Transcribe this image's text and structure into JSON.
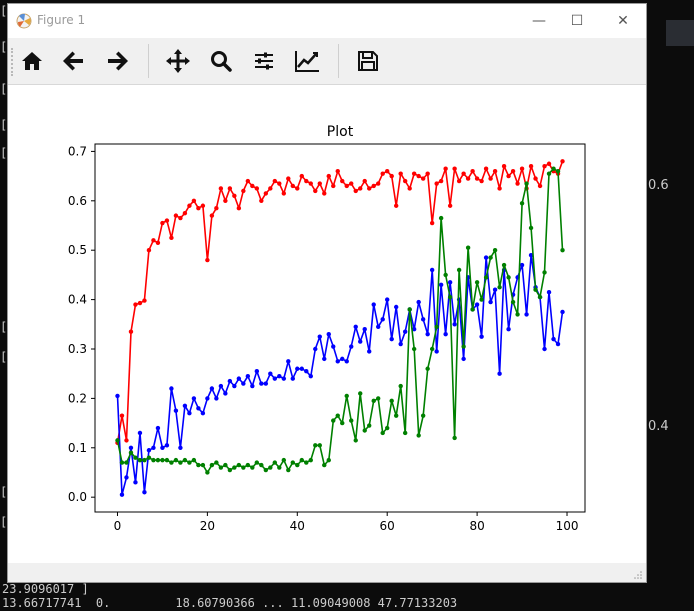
{
  "window": {
    "title": "Figure 1",
    "minimize_glyph": "—",
    "maximize_glyph": "☐",
    "close_glyph": "✕"
  },
  "toolbar": {
    "buttons": [
      {
        "name": "home-icon"
      },
      {
        "name": "back-arrow-icon"
      },
      {
        "name": "forward-arrow-icon"
      },
      {
        "name": "pan-icon"
      },
      {
        "name": "zoom-icon"
      },
      {
        "name": "configure-subplots-icon"
      },
      {
        "name": "edit-axis-icon"
      },
      {
        "name": "save-icon"
      }
    ]
  },
  "terminal": {
    "bottom_line_1": "23.9096017 ]",
    "bottom_line_2": "13.66717741  0.         18.60790366 ... 11.09049008 47.77133203",
    "right_tick_1": "0.6",
    "right_tick_2": "0.4"
  },
  "chart_data": {
    "type": "line",
    "title": "Plot",
    "xlabel": "",
    "ylabel": "",
    "xlim": [
      -5,
      104
    ],
    "ylim": [
      -0.03,
      0.715
    ],
    "xticks": [
      0,
      20,
      40,
      60,
      80,
      100
    ],
    "yticks": [
      0.0,
      0.1,
      0.2,
      0.3,
      0.4,
      0.5,
      0.6,
      0.7
    ],
    "xtick_labels": [
      "0",
      "20",
      "40",
      "60",
      "80",
      "100"
    ],
    "ytick_labels": [
      "0.0",
      "0.1",
      "0.2",
      "0.3",
      "0.4",
      "0.5",
      "0.6",
      "0.7"
    ],
    "grid": false,
    "marker": "dot",
    "x": [
      0,
      1,
      2,
      3,
      4,
      5,
      6,
      7,
      8,
      9,
      10,
      11,
      12,
      13,
      14,
      15,
      16,
      17,
      18,
      19,
      20,
      21,
      22,
      23,
      24,
      25,
      26,
      27,
      28,
      29,
      30,
      31,
      32,
      33,
      34,
      35,
      36,
      37,
      38,
      39,
      40,
      41,
      42,
      43,
      44,
      45,
      46,
      47,
      48,
      49,
      50,
      51,
      52,
      53,
      54,
      55,
      56,
      57,
      58,
      59,
      60,
      61,
      62,
      63,
      64,
      65,
      66,
      67,
      68,
      69,
      70,
      71,
      72,
      73,
      74,
      75,
      76,
      77,
      78,
      79,
      80,
      81,
      82,
      83,
      84,
      85,
      86,
      87,
      88,
      89,
      90,
      91,
      92,
      93,
      94,
      95,
      96,
      97,
      98,
      99
    ],
    "series": [
      {
        "color": "#ff0000",
        "values": [
          0.11,
          0.165,
          0.115,
          0.335,
          0.39,
          0.393,
          0.398,
          0.5,
          0.52,
          0.515,
          0.555,
          0.56,
          0.525,
          0.57,
          0.565,
          0.575,
          0.59,
          0.6,
          0.585,
          0.59,
          0.48,
          0.57,
          0.585,
          0.625,
          0.6,
          0.625,
          0.61,
          0.585,
          0.62,
          0.64,
          0.63,
          0.625,
          0.6,
          0.615,
          0.625,
          0.64,
          0.635,
          0.615,
          0.645,
          0.63,
          0.625,
          0.65,
          0.64,
          0.635,
          0.62,
          0.635,
          0.615,
          0.65,
          0.63,
          0.66,
          0.64,
          0.63,
          0.635,
          0.62,
          0.625,
          0.64,
          0.625,
          0.63,
          0.635,
          0.655,
          0.66,
          0.65,
          0.59,
          0.655,
          0.64,
          0.625,
          0.655,
          0.65,
          0.645,
          0.655,
          0.555,
          0.635,
          0.64,
          0.665,
          0.59,
          0.665,
          0.64,
          0.655,
          0.645,
          0.66,
          0.645,
          0.64,
          0.665,
          0.645,
          0.66,
          0.625,
          0.67,
          0.65,
          0.66,
          0.635,
          0.665,
          0.625,
          0.67,
          0.645,
          0.63,
          0.67,
          0.675,
          0.66,
          0.655,
          0.68
        ]
      },
      {
        "color": "#0000ff",
        "values": [
          0.205,
          0.005,
          0.04,
          0.1,
          0.03,
          0.13,
          0.01,
          0.095,
          0.1,
          0.14,
          0.1,
          0.105,
          0.22,
          0.175,
          0.1,
          0.185,
          0.17,
          0.2,
          0.18,
          0.17,
          0.2,
          0.22,
          0.2,
          0.225,
          0.21,
          0.235,
          0.225,
          0.24,
          0.23,
          0.245,
          0.225,
          0.255,
          0.23,
          0.23,
          0.25,
          0.24,
          0.245,
          0.24,
          0.275,
          0.24,
          0.26,
          0.26,
          0.255,
          0.245,
          0.3,
          0.325,
          0.28,
          0.33,
          0.305,
          0.275,
          0.28,
          0.275,
          0.305,
          0.345,
          0.315,
          0.34,
          0.295,
          0.39,
          0.345,
          0.36,
          0.4,
          0.32,
          0.385,
          0.31,
          0.335,
          0.38,
          0.34,
          0.395,
          0.36,
          0.33,
          0.46,
          0.295,
          0.43,
          0.33,
          0.435,
          0.35,
          0.4,
          0.28,
          0.445,
          0.38,
          0.39,
          0.325,
          0.485,
          0.395,
          0.42,
          0.25,
          0.46,
          0.34,
          0.41,
          0.445,
          0.47,
          0.37,
          0.49,
          0.425,
          0.405,
          0.3,
          0.415,
          0.32,
          0.31,
          0.375
        ]
      },
      {
        "color": "#008000",
        "values": [
          0.115,
          0.07,
          0.07,
          0.09,
          0.08,
          0.075,
          0.075,
          0.08,
          0.075,
          0.075,
          0.075,
          0.075,
          0.07,
          0.075,
          0.07,
          0.075,
          0.07,
          0.075,
          0.065,
          0.065,
          0.05,
          0.065,
          0.07,
          0.06,
          0.065,
          0.055,
          0.06,
          0.065,
          0.06,
          0.065,
          0.06,
          0.07,
          0.065,
          0.055,
          0.06,
          0.07,
          0.06,
          0.075,
          0.055,
          0.07,
          0.065,
          0.075,
          0.07,
          0.075,
          0.105,
          0.105,
          0.065,
          0.075,
          0.155,
          0.165,
          0.15,
          0.205,
          0.155,
          0.115,
          0.21,
          0.135,
          0.145,
          0.195,
          0.2,
          0.13,
          0.14,
          0.195,
          0.165,
          0.225,
          0.13,
          0.38,
          0.3,
          0.125,
          0.165,
          0.26,
          0.3,
          0.345,
          0.565,
          0.45,
          0.405,
          0.12,
          0.46,
          0.305,
          0.505,
          0.38,
          0.435,
          0.4,
          0.445,
          0.485,
          0.5,
          0.425,
          0.47,
          0.445,
          0.395,
          0.37,
          0.595,
          0.635,
          0.545,
          0.42,
          0.405,
          0.455,
          0.655,
          0.665,
          0.66,
          0.5
        ]
      }
    ]
  }
}
